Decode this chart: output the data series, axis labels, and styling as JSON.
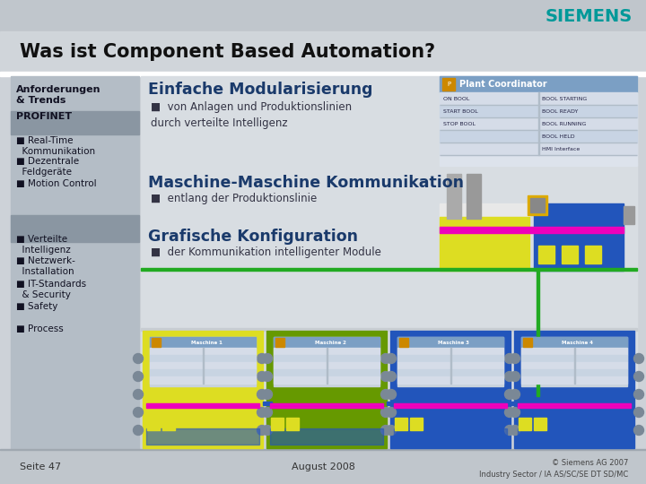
{
  "title": "Was ist Component Based Automation?",
  "siemens_text": "SIEMENS",
  "sidebar_items": [
    {
      "text": "Anforderungen\n& Trends",
      "bold": true,
      "highlight": false
    },
    {
      "text": "PROFINET",
      "bold": true,
      "highlight": true
    },
    {
      "text": "■ Real-Time\n  Kommunikation",
      "bold": false,
      "highlight": false
    },
    {
      "text": "■ Dezentrale\n  Feldgeräte",
      "bold": false,
      "highlight": false
    },
    {
      "text": "■ Motion Control",
      "bold": false,
      "highlight": false
    },
    {
      "text": "■ Verteilte\n  Intelligenz",
      "bold": false,
      "highlight": true
    },
    {
      "text": "■ Netzwerk-\n  Installation",
      "bold": false,
      "highlight": false
    },
    {
      "text": "■ IT-Standards\n  & Security",
      "bold": false,
      "highlight": false
    },
    {
      "text": "■ Safety",
      "bold": false,
      "highlight": false
    },
    {
      "text": "■ Process",
      "bold": false,
      "highlight": false
    }
  ],
  "section1_title": "Einfache Modularisierung",
  "section1_bullet": "von Anlagen und Produktionslinien\ndurch verteilte Intelligenz",
  "section2_title": "Maschine-Maschine Kommunikation",
  "section2_bullet": "entlang der Produktionslinie",
  "section3_title": "Grafische Konfiguration",
  "section3_bullet": "der Kommunikation intelligenter Module",
  "footer_left": "Seite 47",
  "footer_center": "August 2008",
  "footer_right": "© Siemens AG 2007\nIndustry Sector / IA AS/SC/SE DT SD/MC",
  "machine_colors": [
    "#dddd22",
    "#669900",
    "#2255bb",
    "#2255bb"
  ],
  "machine_labels": [
    "Maschine 1",
    "Maschine 2",
    "Maschine 3",
    "Maschine 4"
  ]
}
